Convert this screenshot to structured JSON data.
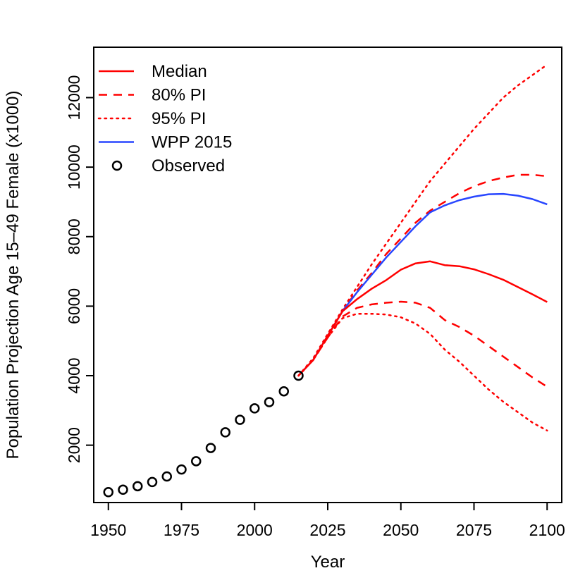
{
  "chart_data": {
    "type": "line",
    "title": "",
    "xlabel": "Year",
    "ylabel": "Population Projection Age 15–49 Female (x1000)",
    "xlim": [
      1945,
      2105
    ],
    "ylim": [
      350,
      13450
    ],
    "x_ticks": [
      1950,
      1975,
      2000,
      2025,
      2050,
      2075,
      2100
    ],
    "y_ticks": [
      2000,
      4000,
      6000,
      8000,
      10000,
      12000
    ],
    "grid": false,
    "legend_position": "top-left",
    "legend": [
      {
        "label": "Median",
        "color": "#ff0000",
        "style": "solid"
      },
      {
        "label": "80% PI",
        "color": "#ff0000",
        "style": "dashed"
      },
      {
        "label": "95% PI",
        "color": "#ff0000",
        "style": "dotted"
      },
      {
        "label": "WPP 2015",
        "color": "#2846ff",
        "style": "solid"
      },
      {
        "label": "Observed",
        "color": "#000000",
        "style": "circle"
      }
    ],
    "series": [
      {
        "name": "Observed",
        "kind": "points",
        "color": "#000000",
        "x": [
          1950,
          1955,
          1960,
          1965,
          1970,
          1975,
          1980,
          1985,
          1990,
          1995,
          2000,
          2005,
          2010,
          2015
        ],
        "values": [
          650,
          720,
          820,
          940,
          1100,
          1300,
          1540,
          1920,
          2370,
          2730,
          3060,
          3240,
          3550,
          4000
        ]
      },
      {
        "name": "95% PI upper",
        "kind": "dotted",
        "color": "#ff0000",
        "x": [
          2015,
          2020,
          2025,
          2030,
          2035,
          2040,
          2045,
          2050,
          2055,
          2060,
          2065,
          2070,
          2075,
          2080,
          2085,
          2090,
          2095,
          2100
        ],
        "values": [
          4000,
          4500,
          5200,
          5900,
          6550,
          7200,
          7800,
          8400,
          9000,
          9600,
          10100,
          10600,
          11100,
          11550,
          12000,
          12350,
          12650,
          12950
        ]
      },
      {
        "name": "80% PI upper",
        "kind": "dashed",
        "color": "#ff0000",
        "x": [
          2015,
          2020,
          2025,
          2030,
          2035,
          2040,
          2045,
          2050,
          2055,
          2060,
          2065,
          2070,
          2075,
          2080,
          2085,
          2090,
          2095,
          2100
        ],
        "values": [
          4000,
          4450,
          5150,
          5850,
          6450,
          6950,
          7500,
          7950,
          8400,
          8750,
          9000,
          9250,
          9450,
          9600,
          9700,
          9780,
          9780,
          9740
        ]
      },
      {
        "name": "WPP 2015",
        "kind": "solid",
        "color": "#2846ff",
        "x": [
          2015,
          2020,
          2025,
          2030,
          2035,
          2040,
          2045,
          2050,
          2055,
          2060,
          2065,
          2070,
          2075,
          2080,
          2085,
          2090,
          2095,
          2100
        ],
        "values": [
          4000,
          4450,
          5150,
          5850,
          6400,
          6900,
          7400,
          7850,
          8300,
          8700,
          8900,
          9050,
          9150,
          9220,
          9230,
          9180,
          9080,
          8930
        ]
      },
      {
        "name": "Median",
        "kind": "solid",
        "color": "#ff0000",
        "x": [
          2015,
          2020,
          2025,
          2030,
          2035,
          2040,
          2045,
          2050,
          2055,
          2060,
          2065,
          2070,
          2075,
          2080,
          2085,
          2090,
          2095,
          2100
        ],
        "values": [
          4000,
          4450,
          5150,
          5850,
          6200,
          6500,
          6750,
          7050,
          7230,
          7290,
          7180,
          7150,
          7060,
          6920,
          6760,
          6550,
          6340,
          6120
        ]
      },
      {
        "name": "80% PI lower",
        "kind": "dashed",
        "color": "#ff0000",
        "x": [
          2015,
          2020,
          2025,
          2030,
          2035,
          2040,
          2045,
          2050,
          2055,
          2060,
          2065,
          2070,
          2075,
          2080,
          2085,
          2090,
          2095,
          2100
        ],
        "values": [
          4000,
          4450,
          5100,
          5700,
          5950,
          6050,
          6100,
          6130,
          6100,
          5950,
          5600,
          5400,
          5150,
          4850,
          4550,
          4250,
          3950,
          3680
        ]
      },
      {
        "name": "95% PI lower",
        "kind": "dotted",
        "color": "#ff0000",
        "x": [
          2015,
          2020,
          2025,
          2030,
          2035,
          2040,
          2045,
          2050,
          2055,
          2060,
          2065,
          2070,
          2075,
          2080,
          2085,
          2090,
          2095,
          2100
        ],
        "values": [
          4000,
          4450,
          5100,
          5650,
          5780,
          5780,
          5760,
          5680,
          5500,
          5200,
          4750,
          4400,
          4000,
          3600,
          3250,
          2950,
          2650,
          2420
        ]
      }
    ]
  }
}
